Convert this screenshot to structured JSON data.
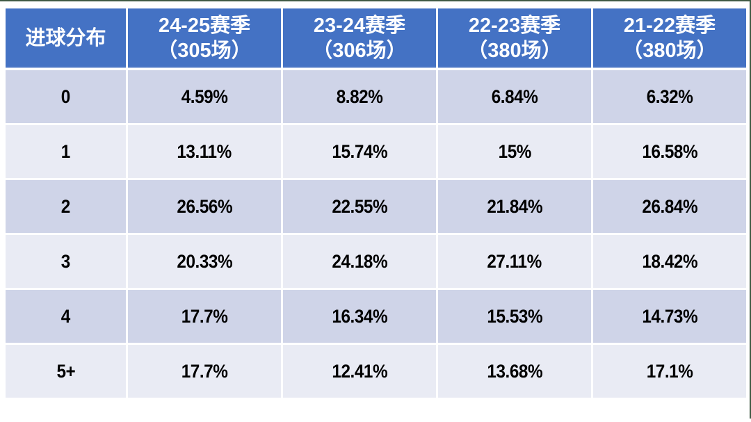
{
  "chart_data": {
    "type": "table",
    "title": "进球分布 (Goal distribution by season)",
    "columns": [
      "进球分布",
      "24-25赛季（305场）",
      "23-24赛季（306场）",
      "22-23赛季（380场）",
      "21-22赛季（380场）"
    ],
    "rows": [
      [
        "0",
        "4.59%",
        "8.82%",
        "6.84%",
        "6.32%"
      ],
      [
        "1",
        "13.11%",
        "15.74%",
        "15%",
        "16.58%"
      ],
      [
        "2",
        "26.56%",
        "22.55%",
        "21.84%",
        "26.84%"
      ],
      [
        "3",
        "20.33%",
        "24.18%",
        "27.11%",
        "18.42%"
      ],
      [
        "4",
        "17.7%",
        "16.34%",
        "15.53%",
        "14.73%"
      ],
      [
        "5+",
        "17.7%",
        "12.41%",
        "13.68%",
        "17.1%"
      ]
    ],
    "legend_position": "none",
    "grid": "white 3px separators, banded rows"
  },
  "header": {
    "seasons": [
      {
        "top": "24-25赛季",
        "bottom": "（305场）"
      },
      {
        "top": "23-24赛季",
        "bottom": "（306场）"
      },
      {
        "top": "22-23赛季",
        "bottom": "（380场）"
      },
      {
        "top": "21-22赛季",
        "bottom": "（380场）"
      }
    ]
  },
  "colors": {
    "header_bg": "#4472C4",
    "header_text": "#FFFFFF",
    "header_accent_line": "#9FB5E0",
    "row_band_dark": "#CFD4E8",
    "row_band_light": "#E9EBF4",
    "grid_line": "#FFFFFF",
    "frame_line": "#3F5A44",
    "body_text": "#000000"
  }
}
